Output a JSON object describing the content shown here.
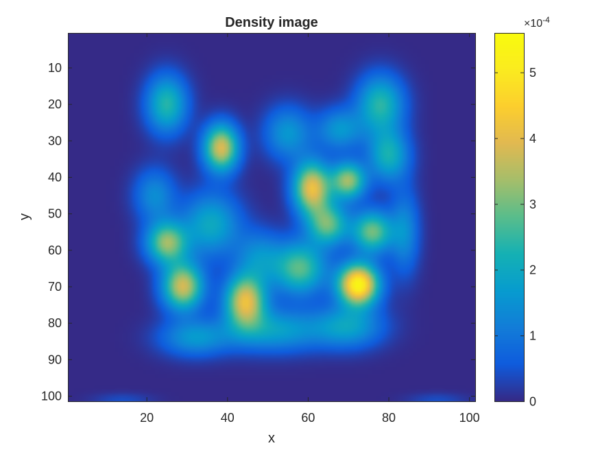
{
  "chart_data": {
    "type": "heatmap",
    "title": "Density image",
    "xlabel": "x",
    "ylabel": "y",
    "xlim": [
      0.5,
      101.5
    ],
    "ylim": [
      0.5,
      101.5
    ],
    "y_reversed": true,
    "x_ticks": [
      20,
      40,
      60,
      80,
      100
    ],
    "y_ticks": [
      10,
      20,
      30,
      40,
      50,
      60,
      70,
      80,
      90,
      100
    ],
    "colormap": "parula",
    "colorbar": {
      "clim": [
        0,
        0.00056
      ],
      "ticks": [
        0,
        1,
        2,
        3,
        4,
        5
      ],
      "tick_values": [
        0,
        0.0001,
        0.0002,
        0.0003,
        0.0004,
        0.0005
      ],
      "exponent_label": "×10",
      "exponent": "-4"
    },
    "density_components": [
      {
        "x": 72.5,
        "y": 69.5,
        "peak": 0.00054,
        "sx": 3.5,
        "sy": 4.0
      },
      {
        "x": 61,
        "y": 43,
        "peak": 0.00041,
        "sx": 3.2,
        "sy": 5.0
      },
      {
        "x": 38.5,
        "y": 32,
        "peak": 0.00039,
        "sx": 3.0,
        "sy": 4.5
      },
      {
        "x": 29,
        "y": 70,
        "peak": 0.00038,
        "sx": 3.5,
        "sy": 4.5
      },
      {
        "x": 44.5,
        "y": 74,
        "peak": 0.0004,
        "sx": 3.5,
        "sy": 5.0
      },
      {
        "x": 25,
        "y": 58,
        "peak": 0.00032,
        "sx": 3.5,
        "sy": 4.0
      },
      {
        "x": 70,
        "y": 41,
        "peak": 0.00033,
        "sx": 3.0,
        "sy": 3.5
      },
      {
        "x": 76,
        "y": 55,
        "peak": 0.0003,
        "sx": 3.5,
        "sy": 4.0
      },
      {
        "x": 58,
        "y": 65,
        "peak": 0.00028,
        "sx": 4.5,
        "sy": 5.0
      },
      {
        "x": 65,
        "y": 53,
        "peak": 0.00028,
        "sx": 3.5,
        "sy": 4.0
      },
      {
        "x": 25,
        "y": 20,
        "peak": 0.00024,
        "sx": 3.5,
        "sy": 5.5
      },
      {
        "x": 78,
        "y": 20,
        "peak": 0.00024,
        "sx": 4.0,
        "sy": 5.5
      },
      {
        "x": 80,
        "y": 34,
        "peak": 0.00022,
        "sx": 3.5,
        "sy": 5.0
      },
      {
        "x": 36,
        "y": 53,
        "peak": 0.0002,
        "sx": 5.0,
        "sy": 6.0
      },
      {
        "x": 52,
        "y": 82,
        "peak": 0.00018,
        "sx": 8.0,
        "sy": 4.0
      },
      {
        "x": 32,
        "y": 84,
        "peak": 0.00016,
        "sx": 6.0,
        "sy": 3.5
      },
      {
        "x": 70,
        "y": 81,
        "peak": 0.00018,
        "sx": 6.0,
        "sy": 4.0
      },
      {
        "x": 55,
        "y": 28,
        "peak": 0.00016,
        "sx": 4.0,
        "sy": 5.0
      },
      {
        "x": 68,
        "y": 27,
        "peak": 0.00016,
        "sx": 4.0,
        "sy": 4.0
      },
      {
        "x": 22,
        "y": 45,
        "peak": 0.00014,
        "sx": 3.5,
        "sy": 5.0
      },
      {
        "x": 84,
        "y": 55,
        "peak": 0.00014,
        "sx": 2.5,
        "sy": 8.0
      },
      {
        "x": 48,
        "y": 62,
        "peak": 0.00014,
        "sx": 4.0,
        "sy": 5.0
      },
      {
        "x": 14,
        "y": 101,
        "peak": 4e-05,
        "sx": 5.0,
        "sy": 1.2
      },
      {
        "x": 92,
        "y": 101,
        "peak": 4e-05,
        "sx": 5.0,
        "sy": 1.2
      }
    ]
  }
}
